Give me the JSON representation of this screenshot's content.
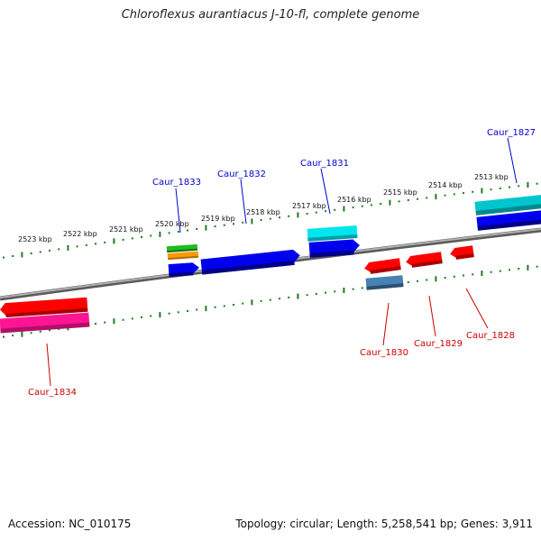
{
  "title": "Chloroflexus aurantiacus J-10-fl, complete genome",
  "footer": {
    "accession": "Accession: NC_010175",
    "topology": "Topology: circular; Length: 5,258,541 bp; Genes: 3,911"
  },
  "colors": {
    "backbone": "#8a8a8a",
    "tick": "#1f7a1f",
    "forward_label": "#0000cc",
    "reverse_label": "#cc0000"
  },
  "scale_labels": [
    "2523 kbp",
    "2522 kbp",
    "2521 kbp",
    "2520 kbp",
    "2519 kbp",
    "2518 kbp",
    "2517 kbp",
    "2516 kbp",
    "2515 kbp",
    "2514 kbp",
    "2513 kbp"
  ],
  "gene_labels": {
    "forward": [
      "Caur_1833",
      "Caur_1832",
      "Caur_1831",
      "Caur_1827"
    ],
    "reverse": [
      "Caur_1834",
      "Caur_1830",
      "Caur_1829",
      "Caur_1828"
    ]
  },
  "feature_colors": [
    "#ff0000",
    "#ff1493",
    "#22bb22",
    "#ff9900",
    "#0000ee",
    "#0000ee",
    "#00e5ee",
    "#0000ee",
    "#ff0000",
    "#4682b4",
    "#ff0000",
    "#ff0000",
    "#00c5cd",
    "#0000ee"
  ]
}
